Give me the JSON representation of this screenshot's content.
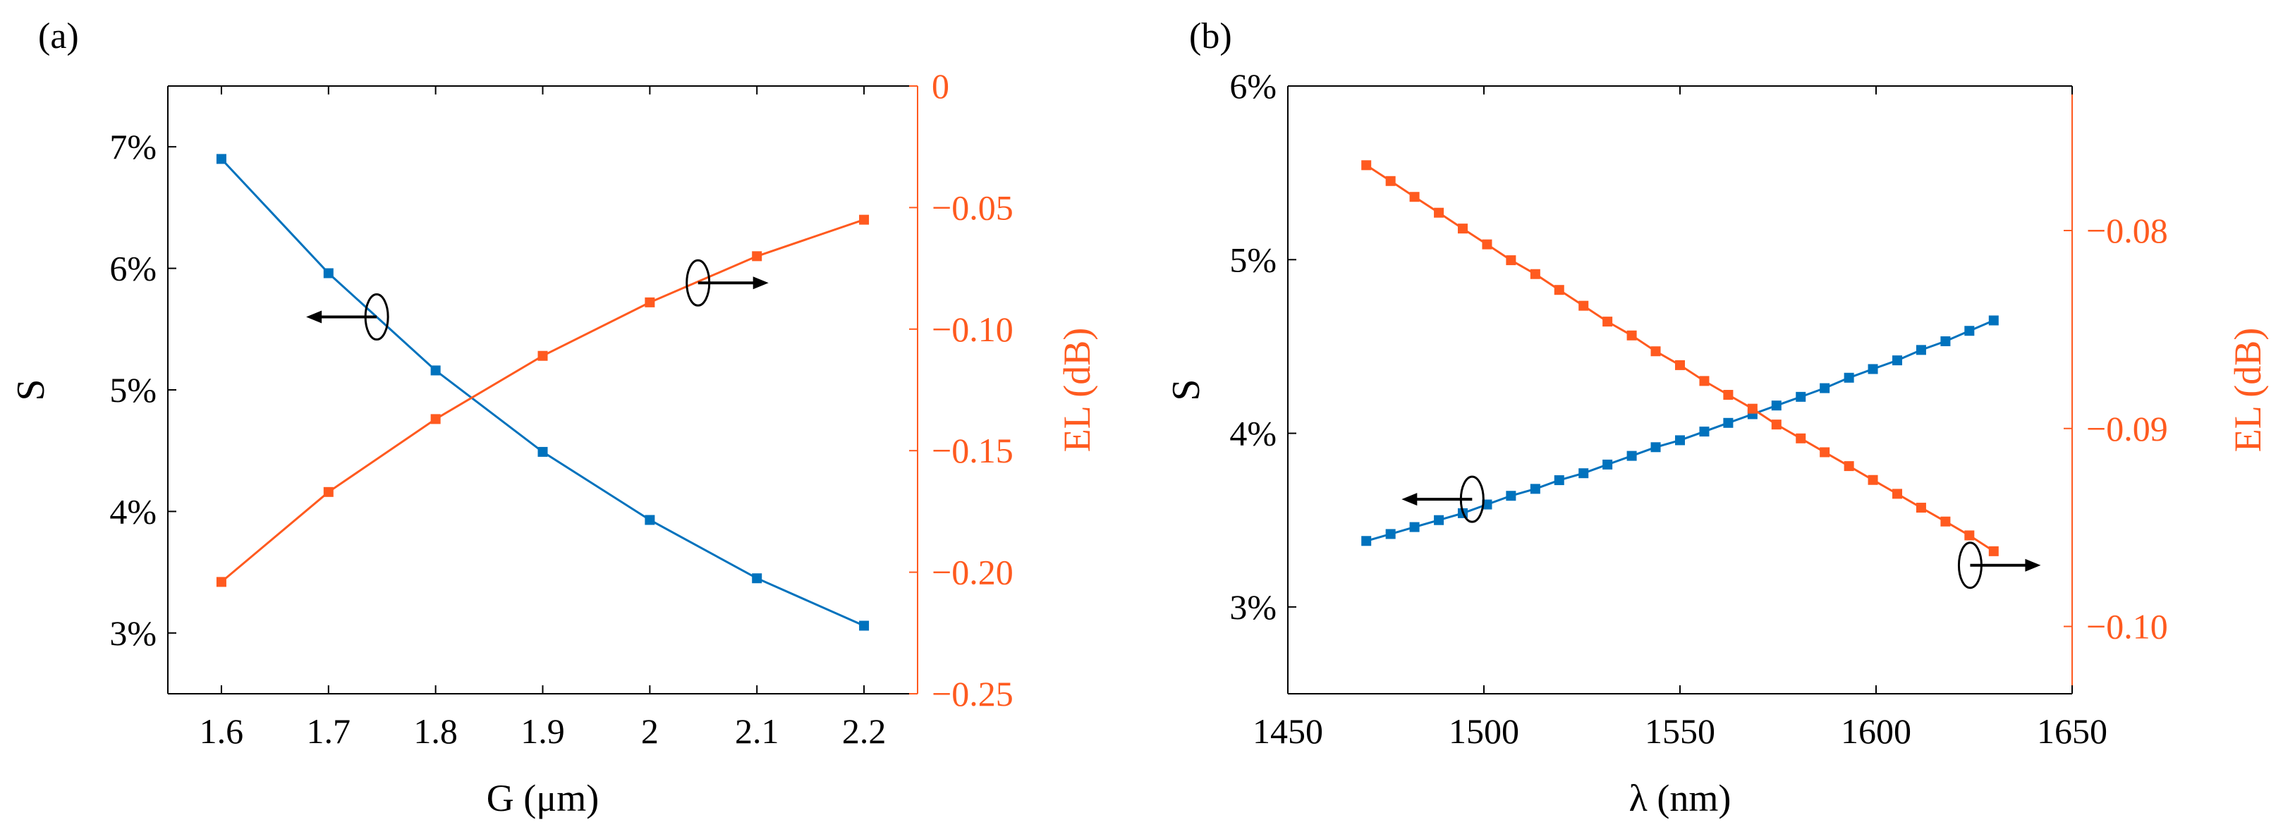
{
  "colors": {
    "left": "#0072BD",
    "right": "#FF5A1F",
    "axis": "#000000"
  },
  "chart_data": [
    {
      "panel_label": "(a)",
      "type": "line",
      "x": [
        1.6,
        1.7,
        1.8,
        1.9,
        2.0,
        2.1,
        2.2
      ],
      "xlabel": "G (μm)",
      "xlim": [
        1.55,
        2.25
      ],
      "xticks": [
        1.6,
        1.7,
        1.8,
        1.9,
        2.0,
        2.1,
        2.2
      ],
      "xtick_labels": [
        "1.6",
        "1.7",
        "1.8",
        "1.9",
        "2",
        "2.1",
        "2.2"
      ],
      "left_axis": {
        "label": "S",
        "lim": [
          2.5,
          7.5
        ],
        "ticks": [
          3,
          4,
          5,
          6,
          7
        ],
        "tick_labels": [
          "3%",
          "4%",
          "5%",
          "6%",
          "7%"
        ]
      },
      "right_axis": {
        "label": "EL (dB)",
        "lim": [
          -0.25,
          0
        ],
        "ticks": [
          -0.25,
          -0.2,
          -0.15,
          -0.1,
          -0.05,
          0
        ],
        "tick_labels": [
          "−0.25",
          "−0.20",
          "−0.15",
          "−0.10",
          "−0.05",
          "0"
        ]
      },
      "series": [
        {
          "name": "S",
          "axis": "left",
          "values": [
            6.9,
            5.96,
            5.16,
            4.49,
            3.93,
            3.45,
            3.06
          ]
        },
        {
          "name": "EL",
          "axis": "right",
          "values": [
            -0.204,
            -0.167,
            -0.137,
            -0.111,
            -0.089,
            -0.07,
            -0.055
          ]
        }
      ],
      "annotations": [
        {
          "target": "S",
          "x": 1.745,
          "y": 5.6,
          "direction": "left",
          "axis": "left"
        },
        {
          "target": "EL",
          "x": 2.045,
          "y": 5.88,
          "direction": "right",
          "axis": "left"
        }
      ]
    },
    {
      "panel_label": "(b)",
      "type": "line",
      "x": [
        1470,
        1476.2,
        1482.3,
        1488.5,
        1494.6,
        1500.8,
        1506.9,
        1513.1,
        1519.2,
        1525.4,
        1531.5,
        1537.7,
        1543.8,
        1550,
        1556.2,
        1562.3,
        1568.5,
        1574.6,
        1580.8,
        1586.9,
        1593.1,
        1599.2,
        1605.4,
        1611.5,
        1617.7,
        1623.8,
        1630
      ],
      "xlabel": "λ (nm)",
      "xlim": [
        1450,
        1650
      ],
      "xticks": [
        1450,
        1500,
        1550,
        1600,
        1650
      ],
      "xtick_labels": [
        "1450",
        "1500",
        "1550",
        "1600",
        "1650"
      ],
      "left_axis": {
        "label": "S",
        "lim": [
          2.5,
          6
        ],
        "ticks": [
          3,
          4,
          5,
          6
        ],
        "tick_labels": [
          "3%",
          "4%",
          "5%",
          "6%"
        ]
      },
      "right_axis": {
        "label": "EL (dB)",
        "lim": [
          -0.1034,
          -0.0727
        ],
        "ticks": [
          -0.1,
          -0.09,
          -0.08
        ],
        "tick_labels": [
          "−0.10",
          "−0.09",
          "−0.08"
        ]
      },
      "series": [
        {
          "name": "S",
          "axis": "left",
          "values": [
            3.38,
            3.42,
            3.46,
            3.5,
            3.54,
            3.59,
            3.64,
            3.68,
            3.73,
            3.77,
            3.82,
            3.87,
            3.92,
            3.96,
            4.01,
            4.06,
            4.11,
            4.16,
            4.21,
            4.26,
            4.32,
            4.37,
            4.42,
            4.48,
            4.53,
            4.59,
            4.65
          ]
        },
        {
          "name": "EL",
          "axis": "right",
          "values": [
            -0.0767,
            -0.0775,
            -0.0783,
            -0.0791,
            -0.0799,
            -0.0807,
            -0.0815,
            -0.0822,
            -0.083,
            -0.0838,
            -0.0846,
            -0.0853,
            -0.0861,
            -0.0868,
            -0.0876,
            -0.0883,
            -0.089,
            -0.0898,
            -0.0905,
            -0.0912,
            -0.0919,
            -0.0926,
            -0.0933,
            -0.094,
            -0.0947,
            -0.0954,
            -0.0962
          ]
        }
      ],
      "annotations": [
        {
          "target": "S",
          "x": 1497,
          "y": 3.62,
          "direction": "left",
          "axis": "left"
        },
        {
          "target": "EL",
          "x": 1624,
          "y": 3.24,
          "direction": "right",
          "axis": "left"
        }
      ]
    }
  ]
}
